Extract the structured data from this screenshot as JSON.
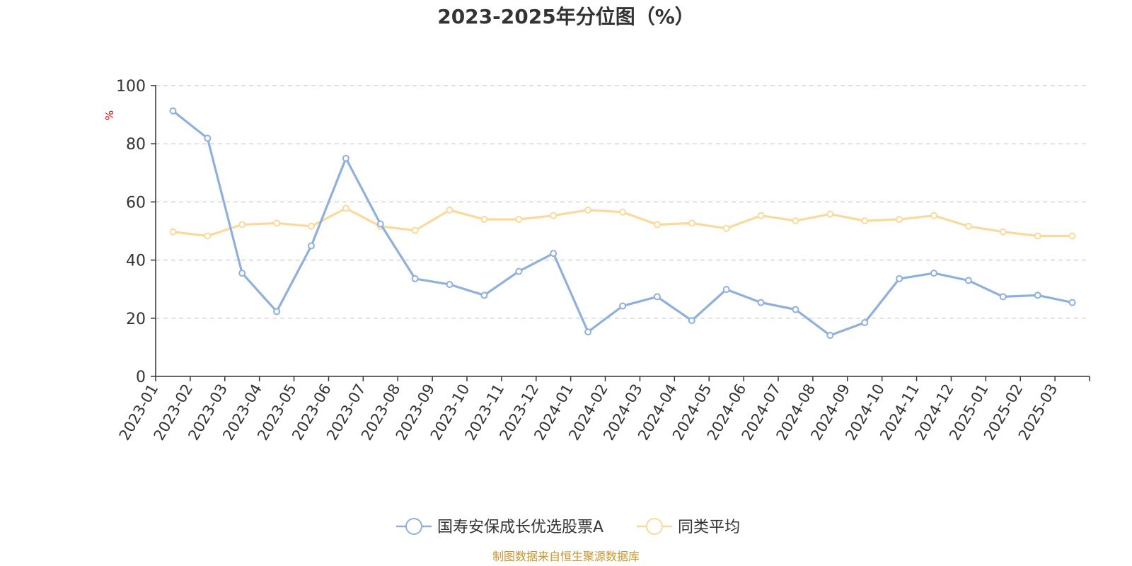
{
  "chart_data": {
    "type": "line",
    "title": "2023-2025年分位图（%）",
    "y_unit": "%",
    "ylim": [
      0,
      100
    ],
    "yticks": [
      0,
      20,
      40,
      60,
      80,
      100
    ],
    "grid": true,
    "legend_position": "bottom-center",
    "categories": [
      "2023-01",
      "2023-02",
      "2023-03",
      "2023-04",
      "2023-05",
      "2023-06",
      "2023-07",
      "2023-08",
      "2023-09",
      "2023-10",
      "2023-11",
      "2023-12",
      "2024-01",
      "2024-02",
      "2024-03",
      "2024-04",
      "2024-05",
      "2024-06",
      "2024-07",
      "2024-08",
      "2024-09",
      "2024-10",
      "2024-11",
      "2024-12",
      "2025-01",
      "2025-02",
      "2025-03"
    ],
    "series": [
      {
        "name": "国寿安保成长优选股票A",
        "color": "#8fb0dc",
        "values": [
          91.3,
          81.9,
          35.5,
          22.3,
          44.9,
          75.0,
          52.4,
          33.6,
          31.6,
          27.9,
          36.1,
          42.3,
          15.3,
          24.2,
          27.4,
          19.2,
          29.9,
          25.4,
          23.0,
          14.1,
          18.5,
          33.6,
          35.5,
          33.0,
          27.4,
          27.9,
          25.4
        ]
      },
      {
        "name": "同类平均",
        "color": "#fbd99b",
        "values": [
          49.7,
          48.3,
          52.2,
          52.7,
          51.6,
          57.8,
          51.6,
          50.2,
          57.2,
          54.0,
          54.0,
          55.3,
          57.2,
          56.5,
          52.2,
          52.7,
          50.9,
          55.3,
          53.5,
          55.8,
          53.5,
          54.0,
          55.3,
          51.6,
          49.7,
          48.3,
          48.3
        ]
      }
    ]
  },
  "colors": {
    "unit_label": "#e60000",
    "source": "#c8962e",
    "axis": "#333333",
    "grid": "#cccccc"
  },
  "source": "制图数据来自恒生聚源数据库"
}
